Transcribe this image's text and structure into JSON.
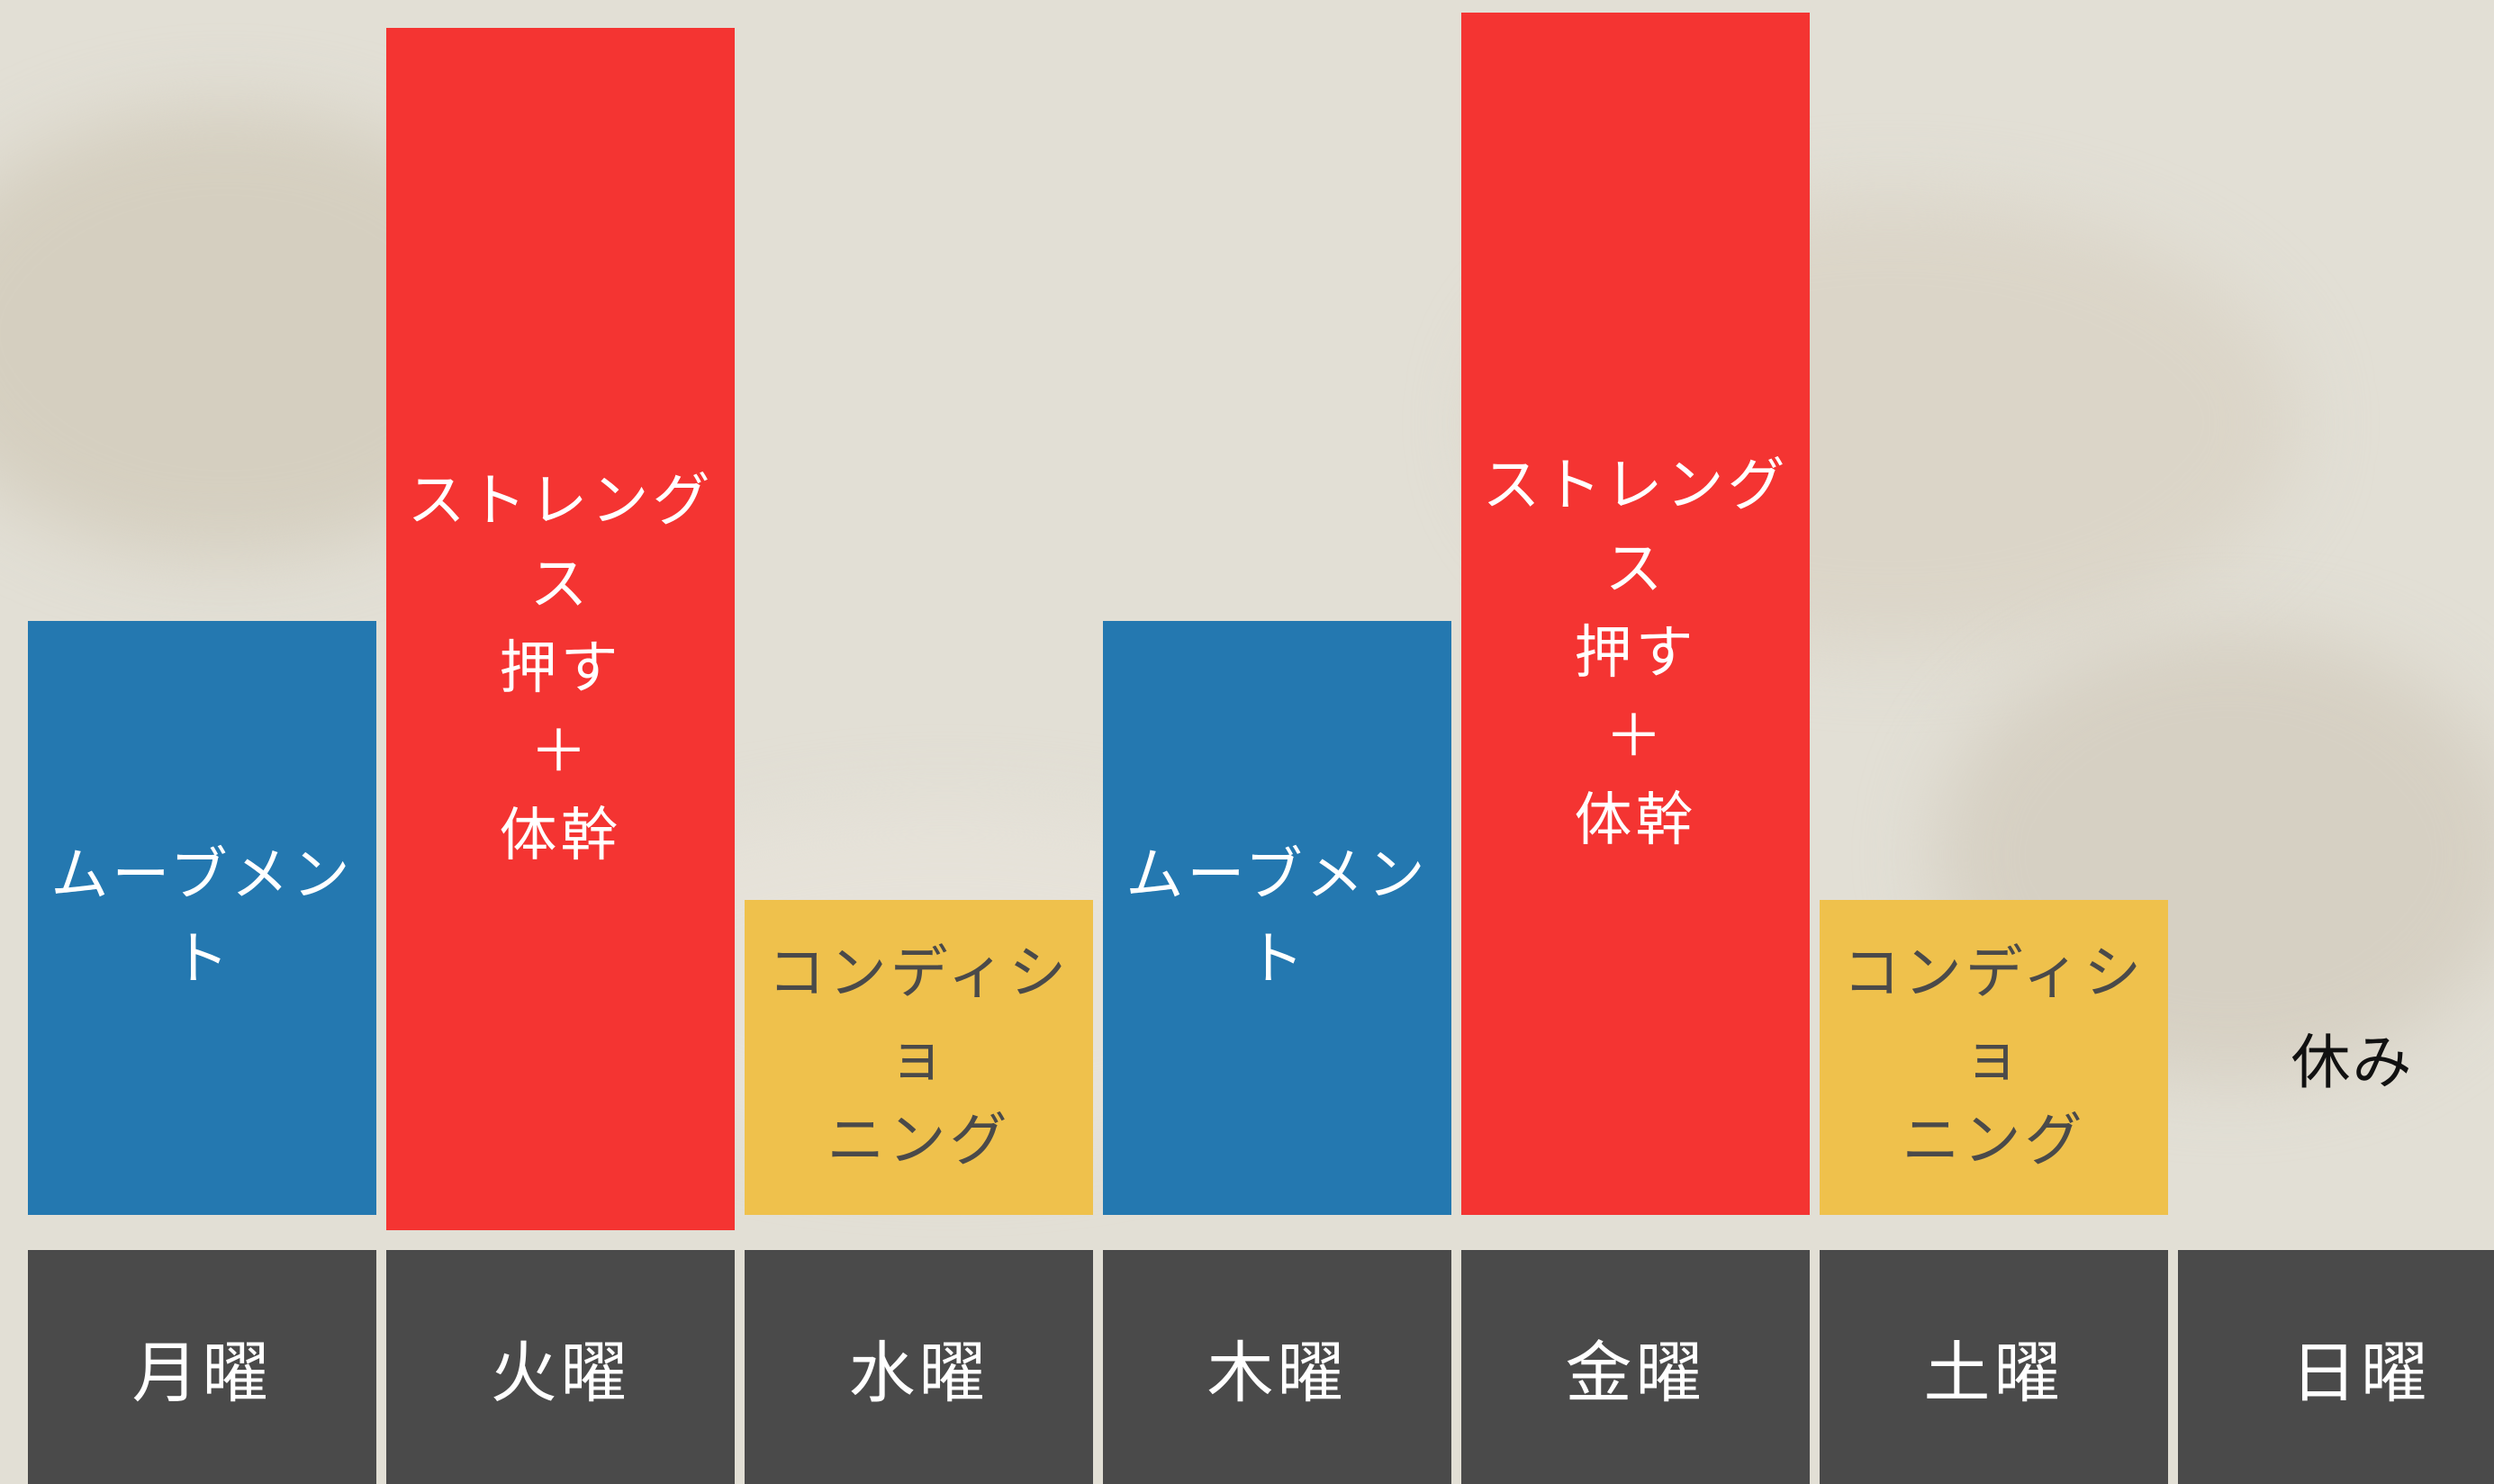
{
  "colors": {
    "movement": "#2478b0",
    "strength": "#f43432",
    "conditioning": "#efc14c",
    "day_tile": "#4a4a4a",
    "background": "#e2dfd5"
  },
  "days": [
    {
      "day": "月曜",
      "category": "movement",
      "label": "ムーブメント"
    },
    {
      "day": "火曜",
      "category": "strength",
      "label": "ストレングス\n押す\n＋\n体幹"
    },
    {
      "day": "水曜",
      "category": "conditioning",
      "label": "コンディショ\nニング"
    },
    {
      "day": "木曜",
      "category": "movement",
      "label": "ムーブメント"
    },
    {
      "day": "金曜",
      "category": "strength",
      "label": "ストレングス\n押す\n＋\n体幹"
    },
    {
      "day": "土曜",
      "category": "conditioning",
      "label": "コンディショ\nニング"
    },
    {
      "day": "日曜",
      "category": "rest",
      "label": "休み"
    }
  ]
}
